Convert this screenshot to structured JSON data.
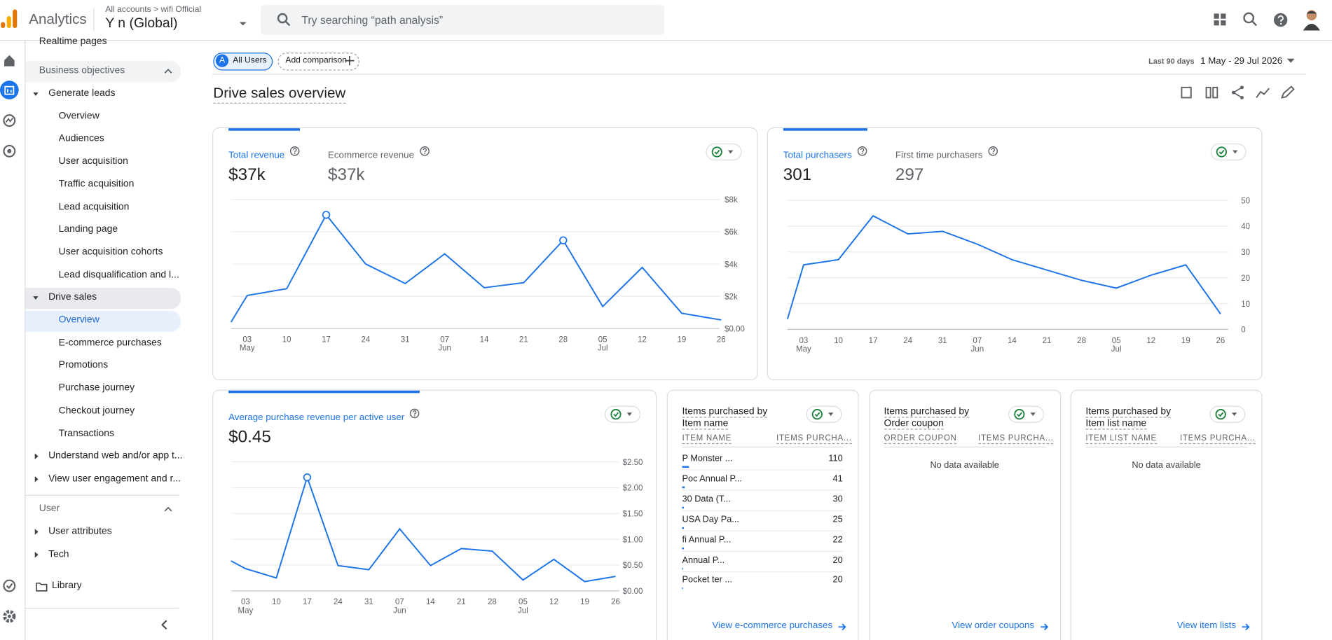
{
  "header": {
    "product": "Analytics",
    "account_path": "All accounts > wifi Official",
    "property": "Y n (Global)",
    "search_placeholder": "Try searching “path analysis”"
  },
  "sidebar": {
    "top_item": "Realtime pages",
    "sections": [
      {
        "title": "Business objectives",
        "groups": [
          {
            "title": "Generate leads",
            "items": [
              "Overview",
              "Audiences",
              "User acquisition",
              "Traffic acquisition",
              "Lead acquisition",
              "Landing page",
              "User acquisition cohorts",
              "Lead disqualification and l..."
            ]
          },
          {
            "title": "Drive sales",
            "items": [
              "Overview",
              "E-commerce purchases",
              "Promotions",
              "Purchase journey",
              "Checkout journey",
              "Transactions"
            ]
          },
          {
            "title": "Understand web and/or app t..."
          },
          {
            "title": "View user engagement and r..."
          }
        ]
      },
      {
        "title": "User",
        "groups": [
          {
            "title": "User attributes"
          },
          {
            "title": "Tech"
          }
        ]
      }
    ],
    "library": "Library"
  },
  "toolbar": {
    "segment_badge": "A",
    "segment": "All Users",
    "add_comparison": "Add comparison",
    "date_range_label": "Last 90 days",
    "date_range": "1 May - 29 Jul 2026"
  },
  "page_title": "Drive sales overview",
  "chart_data": [
    {
      "type": "line",
      "metrics": [
        {
          "name": "Total revenue",
          "value": "$37k"
        },
        {
          "name": "Ecommerce revenue",
          "value": "$37k"
        }
      ],
      "categories": [
        null,
        "03",
        "10",
        "17",
        "24",
        "31",
        "07",
        "14",
        "21",
        "28",
        "05",
        "12",
        "19",
        "26"
      ],
      "months": [
        null,
        "May",
        null,
        null,
        null,
        null,
        "Jun",
        null,
        null,
        null,
        "Jul",
        null,
        null,
        null
      ],
      "values": [
        400,
        2050,
        2470,
        7050,
        4000,
        2790,
        4630,
        2530,
        2840,
        5470,
        1370,
        3790,
        950,
        530
      ],
      "highlighted": [
        3,
        9
      ],
      "color": "#1a73e8",
      "ylim": [
        0,
        8000
      ],
      "yticks": [
        {
          "value": 0,
          "label": "$0.00"
        },
        {
          "value": 2000,
          "label": "$2k"
        },
        {
          "value": 4000,
          "label": "$4k"
        },
        {
          "value": 6000,
          "label": "$6k"
        },
        {
          "value": 8000,
          "label": "$8k"
        }
      ],
      "grid": true
    },
    {
      "type": "line",
      "metrics": [
        {
          "name": "Total purchasers",
          "value": "301"
        },
        {
          "name": "First time purchasers",
          "value": "297"
        }
      ],
      "categories": [
        null,
        "03",
        "10",
        "17",
        "24",
        "31",
        "07",
        "14",
        "21",
        "28",
        "05",
        "12",
        "19",
        "26"
      ],
      "months": [
        null,
        "May",
        null,
        null,
        null,
        null,
        "Jun",
        null,
        null,
        null,
        "Jul",
        null,
        null,
        null
      ],
      "values": [
        4,
        25,
        27,
        44,
        37,
        38,
        33,
        27,
        23,
        19,
        16,
        21,
        25,
        6
      ],
      "highlighted": [],
      "color": "#1a73e8",
      "ylim": [
        0,
        50
      ],
      "yticks": [
        0,
        10,
        20,
        30,
        40,
        50
      ],
      "grid": true
    },
    {
      "type": "line",
      "metrics": [
        {
          "name": "Average purchase revenue per active user",
          "value": "$0.45"
        }
      ],
      "categories": [
        null,
        "03",
        "10",
        "17",
        "24",
        "31",
        "07",
        "14",
        "21",
        "28",
        "05",
        "12",
        "19",
        "26"
      ],
      "months": [
        null,
        "May",
        null,
        null,
        null,
        null,
        "Jun",
        null,
        null,
        null,
        "Jul",
        null,
        null,
        null
      ],
      "values": [
        0.58,
        0.43,
        0.25,
        2.2,
        0.49,
        0.41,
        1.2,
        0.49,
        0.82,
        0.77,
        0.21,
        0.61,
        0.18,
        0.28
      ],
      "highlighted": [
        3
      ],
      "color": "#1a73e8",
      "ylim": [
        0,
        2.5
      ],
      "yticks": [
        {
          "value": 0,
          "label": "$0.00"
        },
        {
          "value": 0.5,
          "label": "$0.50"
        },
        {
          "value": 1,
          "label": "$1.00"
        },
        {
          "value": 1.5,
          "label": "$1.50"
        },
        {
          "value": 2,
          "label": "$2.00"
        },
        {
          "value": 2.5,
          "label": "$2.50"
        }
      ],
      "grid": true
    }
  ],
  "tables": [
    {
      "title": "Items purchased by",
      "dimension": "Item name",
      "columns": [
        "ITEM NAME",
        "ITEMS PURCHA..."
      ],
      "rows": [
        [
          "P Monster ...",
          110
        ],
        [
          "Poc Annual P...",
          41
        ],
        [
          "30 Data (T...",
          30
        ],
        [
          "USA Day Pa...",
          25
        ],
        [
          "fi Annual P...",
          22
        ],
        [
          "Annual P...",
          20
        ],
        [
          "Pocket ter ...",
          20
        ]
      ],
      "link": "View e-commerce purchases"
    },
    {
      "title": "Items purchased by",
      "dimension": "Order coupon",
      "columns": [
        "ORDER COUPON",
        "ITEMS PURCHA..."
      ],
      "empty": "No data available",
      "link": "View order coupons"
    },
    {
      "title": "Items purchased by",
      "dimension": "Item list name",
      "columns": [
        "ITEM LIST NAME",
        "ITEMS PURCHA..."
      ],
      "empty": "No data available",
      "link": "View item lists"
    }
  ]
}
